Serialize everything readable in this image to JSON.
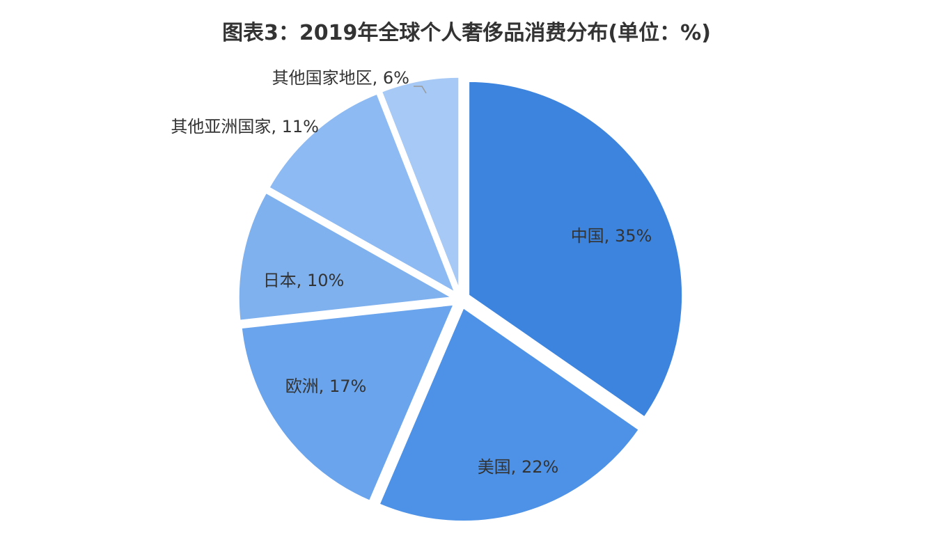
{
  "chart_data": {
    "type": "pie",
    "title": "图表3：2019年全球个人奢侈品消费分布(单位：%)",
    "slices": [
      {
        "label": "中国",
        "value": 35,
        "display": "中国, 35%",
        "color": "#3d84de"
      },
      {
        "label": "美国",
        "value": 22,
        "display": "美国, 22%",
        "color": "#4d92e6"
      },
      {
        "label": "欧洲",
        "value": 17,
        "display": "欧洲, 17%",
        "color": "#6aa4ec"
      },
      {
        "label": "日本",
        "value": 10,
        "display": "日本, 10%",
        "color": "#7fb1ef"
      },
      {
        "label": "其他亚洲国家",
        "value": 11,
        "display": "其他亚洲国家, 11%",
        "color": "#8dbaf2"
      },
      {
        "label": "其他国家地区",
        "value": 6,
        "display": "其他国家地区, 6%",
        "color": "#a6c9f6"
      }
    ],
    "start_angle_deg": 0,
    "direction": "clockwise",
    "legend": "none"
  }
}
